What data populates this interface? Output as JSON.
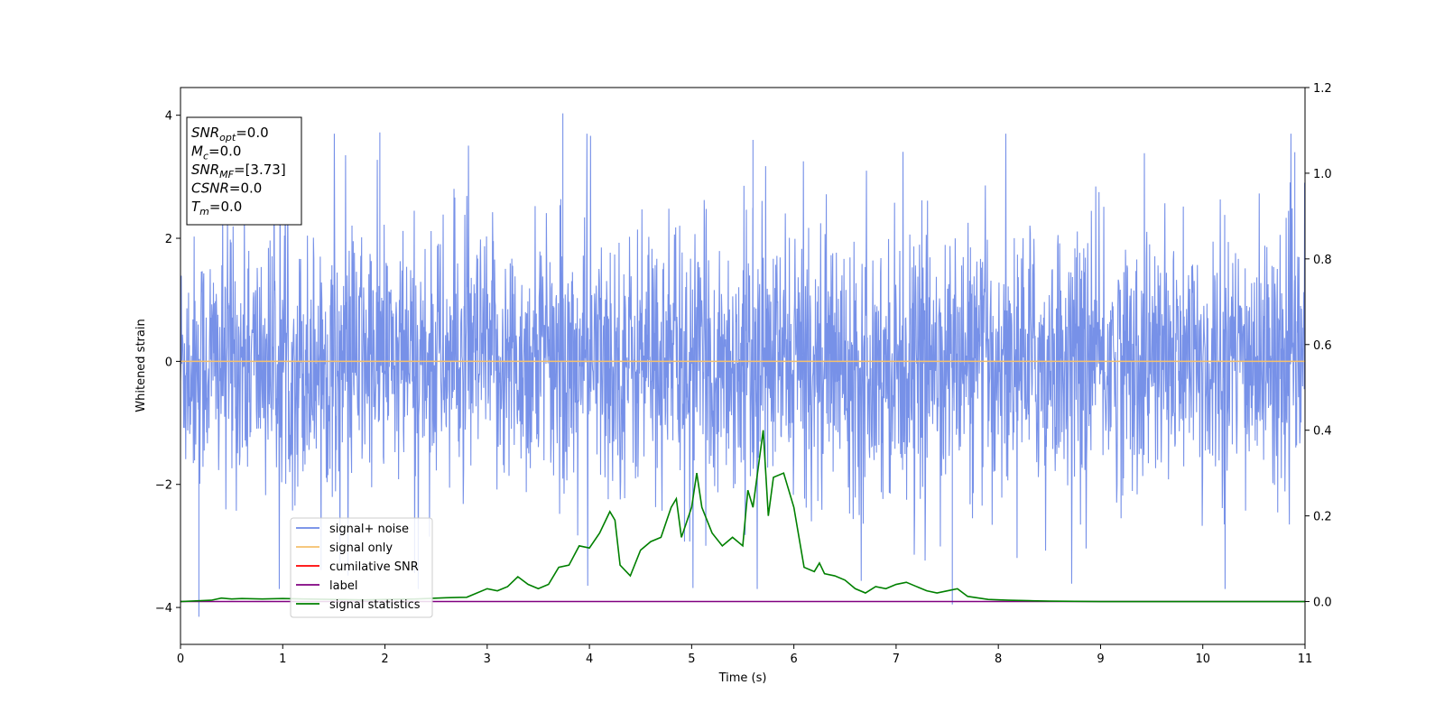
{
  "chart_data": {
    "type": "line",
    "xlabel": "Time (s)",
    "ylabel": "Whitened strain",
    "xlim": [
      0,
      11
    ],
    "ylim_left": [
      -4.6,
      4.45
    ],
    "ylim_right": [
      -0.1,
      1.2
    ],
    "x_ticks": [
      0,
      1,
      2,
      3,
      4,
      5,
      6,
      7,
      8,
      9,
      10,
      11
    ],
    "y_ticks_left": [
      -4,
      -2,
      0,
      2,
      4
    ],
    "y_ticks_right": [
      "0.0",
      "0.2",
      "0.4",
      "0.6",
      "0.8",
      "1.0",
      "1.2"
    ],
    "legend_position": "lower-left",
    "legend": [
      {
        "name": "signal+ noise",
        "color": "#6b88e6"
      },
      {
        "name": "signal only",
        "color": "#f5c16c"
      },
      {
        "name": "cumilative SNR",
        "color": "#ff0000"
      },
      {
        "name": "label",
        "color": "#800080"
      },
      {
        "name": "signal statistics",
        "color": "#008000"
      }
    ],
    "series": [
      {
        "name": "signal+ noise",
        "axis": "left",
        "color": "#6b88e6",
        "description_kind": "noise",
        "envelope_typical": 1.6,
        "peaks": [
          [
            0.18,
            -4.15
          ],
          [
            1.95,
            3.72
          ],
          [
            3.74,
            4.03
          ],
          [
            5.6,
            3.6
          ],
          [
            7.55,
            -3.95
          ],
          [
            10.9,
            3.4
          ]
        ]
      },
      {
        "name": "signal only",
        "axis": "left",
        "color": "#f5c16c",
        "x": [
          0,
          11
        ],
        "y": [
          0,
          0
        ]
      },
      {
        "name": "label",
        "axis": "right",
        "color": "#800080",
        "x": [
          0,
          11
        ],
        "y": [
          0,
          0
        ]
      },
      {
        "name": "signal statistics",
        "axis": "right",
        "color": "#008000",
        "x": [
          0.0,
          0.3,
          0.4,
          0.5,
          0.6,
          0.8,
          1.0,
          1.2,
          1.5,
          1.8,
          2.0,
          2.3,
          2.6,
          2.8,
          3.0,
          3.1,
          3.2,
          3.3,
          3.4,
          3.5,
          3.6,
          3.7,
          3.8,
          3.9,
          4.0,
          4.1,
          4.2,
          4.25,
          4.3,
          4.4,
          4.5,
          4.6,
          4.7,
          4.8,
          4.85,
          4.9,
          5.0,
          5.05,
          5.1,
          5.2,
          5.3,
          5.4,
          5.5,
          5.55,
          5.6,
          5.7,
          5.75,
          5.8,
          5.9,
          6.0,
          6.1,
          6.2,
          6.25,
          6.3,
          6.4,
          6.5,
          6.6,
          6.7,
          6.8,
          6.9,
          7.0,
          7.1,
          7.2,
          7.3,
          7.4,
          7.5,
          7.6,
          7.7,
          7.9,
          8.1,
          8.3,
          8.5,
          9.0,
          10.0,
          11.0
        ],
        "y": [
          0.0,
          0.003,
          0.008,
          0.006,
          0.007,
          0.006,
          0.007,
          0.006,
          0.005,
          0.004,
          0.005,
          0.006,
          0.009,
          0.01,
          0.03,
          0.025,
          0.035,
          0.058,
          0.04,
          0.03,
          0.04,
          0.08,
          0.085,
          0.13,
          0.125,
          0.16,
          0.21,
          0.19,
          0.085,
          0.06,
          0.12,
          0.14,
          0.15,
          0.22,
          0.24,
          0.15,
          0.22,
          0.3,
          0.22,
          0.16,
          0.13,
          0.15,
          0.13,
          0.26,
          0.22,
          0.4,
          0.2,
          0.29,
          0.3,
          0.22,
          0.08,
          0.07,
          0.09,
          0.065,
          0.06,
          0.05,
          0.03,
          0.02,
          0.035,
          0.03,
          0.04,
          0.045,
          0.035,
          0.025,
          0.02,
          0.025,
          0.03,
          0.012,
          0.005,
          0.003,
          0.002,
          0.001,
          0.0,
          0.0,
          0.0
        ]
      }
    ],
    "info_box": {
      "lines": [
        {
          "sym": "SNR",
          "sub": "opt",
          "rest": "=0.0"
        },
        {
          "sym": "M",
          "sub": "c",
          "rest": "=0.0"
        },
        {
          "sym": "SNR",
          "sub": "MF",
          "rest": "=[3.73]"
        },
        {
          "sym": "CSNR",
          "sub": "",
          "rest": "=0.0"
        },
        {
          "sym": "T",
          "sub": "m",
          "rest": "=0.0"
        }
      ]
    }
  }
}
